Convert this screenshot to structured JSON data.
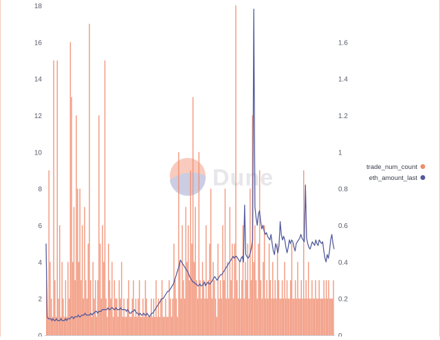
{
  "watermark": {
    "text": "Dune"
  },
  "colors": {
    "bar": "#f08c6e",
    "line": "#525a9c",
    "background": "#ffffff",
    "frame": "#f3c9bd",
    "watermark_logo_top": "#f7c2b3",
    "watermark_logo_bottom": "#c7cce6"
  },
  "chart_data": {
    "type": "bar+line",
    "title": "",
    "xlabel": "",
    "ylabel": "",
    "ylim": [
      0,
      18
    ],
    "y2lim": [
      0,
      1.8
    ],
    "yticks": [
      "0",
      "2",
      "4",
      "6",
      "8",
      "10",
      "12",
      "14",
      "16",
      "18"
    ],
    "y2ticks": [
      "0",
      "0.2",
      "0.4",
      "0.6",
      "0.8",
      "1",
      "1.2",
      "1.4",
      "1.6"
    ],
    "grid": false,
    "legend_position": "right",
    "legend": [
      {
        "label": "trade_num_count",
        "color": "#f08c6e"
      },
      {
        "label": "eth_amount_last",
        "color": "#525a9c"
      }
    ],
    "series": [
      {
        "name": "trade_num_count",
        "axis": "left",
        "kind": "bar",
        "values": [
          3,
          1,
          9,
          4,
          2,
          1,
          15,
          3,
          1,
          15,
          2,
          6,
          1,
          4,
          2,
          1,
          3,
          1,
          4,
          2,
          16,
          13,
          4,
          7,
          3,
          12,
          8,
          4,
          8,
          3,
          6,
          2,
          7,
          3,
          2,
          5,
          17,
          3,
          1,
          4,
          2,
          3,
          1,
          3,
          12,
          5,
          2,
          6,
          4,
          15,
          2,
          1,
          5,
          3,
          2,
          4,
          1,
          3,
          2,
          2,
          1,
          3,
          2,
          4,
          1,
          2,
          1,
          1,
          2,
          3,
          1,
          1,
          2,
          3,
          1,
          2,
          1,
          2,
          3,
          1,
          1,
          2,
          1,
          3,
          2,
          1,
          1,
          1,
          2,
          1,
          2,
          1,
          3,
          1,
          2,
          1,
          2,
          3,
          1,
          1,
          2,
          1,
          1,
          3,
          2,
          1,
          2,
          5,
          3,
          2,
          1,
          10,
          4,
          2,
          6,
          3,
          2,
          7,
          4,
          6,
          3,
          9,
          5,
          13,
          4,
          7,
          3,
          2,
          10,
          3,
          2,
          4,
          3,
          2,
          6,
          2,
          3,
          5,
          8,
          2,
          4,
          3,
          2,
          1,
          5,
          2,
          3,
          2,
          6,
          3,
          8,
          2,
          4,
          2,
          7,
          3,
          5,
          2,
          5,
          18,
          3,
          2,
          4,
          2,
          3,
          6,
          2,
          4,
          3,
          5,
          2,
          8,
          3,
          12,
          4,
          6,
          3,
          2,
          5,
          9,
          3,
          2,
          4,
          6,
          2,
          3,
          2,
          5,
          3,
          2,
          4,
          2,
          3,
          2,
          5,
          3,
          2,
          2,
          3,
          2,
          4,
          2,
          3,
          2,
          2,
          3,
          5,
          2,
          2,
          3,
          2,
          4,
          2,
          2,
          3,
          2,
          9,
          2,
          3,
          2,
          4,
          2,
          2,
          3,
          2,
          2,
          3,
          2,
          2,
          3,
          2,
          2,
          2,
          3,
          2,
          3,
          2,
          3,
          2,
          2,
          2,
          3
        ]
      },
      {
        "name": "eth_amount_last",
        "axis": "right",
        "kind": "line",
        "values": [
          0.5,
          0.1,
          0.09,
          0.09,
          0.09,
          0.08,
          0.09,
          0.08,
          0.08,
          0.09,
          0.08,
          0.08,
          0.08,
          0.09,
          0.08,
          0.08,
          0.08,
          0.09,
          0.08,
          0.09,
          0.09,
          0.09,
          0.1,
          0.1,
          0.09,
          0.1,
          0.1,
          0.1,
          0.11,
          0.1,
          0.1,
          0.11,
          0.11,
          0.11,
          0.12,
          0.11,
          0.11,
          0.11,
          0.11,
          0.12,
          0.11,
          0.12,
          0.12,
          0.13,
          0.13,
          0.12,
          0.13,
          0.13,
          0.13,
          0.14,
          0.14,
          0.14,
          0.14,
          0.14,
          0.15,
          0.14,
          0.14,
          0.15,
          0.15,
          0.14,
          0.14,
          0.15,
          0.14,
          0.14,
          0.14,
          0.15,
          0.14,
          0.14,
          0.14,
          0.14,
          0.13,
          0.14,
          0.13,
          0.12,
          0.12,
          0.13,
          0.13,
          0.14,
          0.13,
          0.12,
          0.12,
          0.11,
          0.12,
          0.11,
          0.11,
          0.12,
          0.11,
          0.11,
          0.12,
          0.11,
          0.1,
          0.11,
          0.12,
          0.12,
          0.13,
          0.14,
          0.15,
          0.16,
          0.17,
          0.18,
          0.19,
          0.2,
          0.2,
          0.21,
          0.22,
          0.23,
          0.24,
          0.24,
          0.25,
          0.26,
          0.27,
          0.28,
          0.3,
          0.32,
          0.34,
          0.36,
          0.38,
          0.41,
          0.4,
          0.39,
          0.38,
          0.37,
          0.36,
          0.35,
          0.34,
          0.32,
          0.31,
          0.3,
          0.29,
          0.29,
          0.28,
          0.28,
          0.27,
          0.27,
          0.28,
          0.27,
          0.27,
          0.28,
          0.29,
          0.27,
          0.28,
          0.29,
          0.28,
          0.28,
          0.29,
          0.3,
          0.31,
          0.32,
          0.31,
          0.3,
          0.31,
          0.32,
          0.33,
          0.33,
          0.34,
          0.35,
          0.36,
          0.37,
          0.38,
          0.39,
          0.4,
          0.41,
          0.42,
          0.43,
          0.42,
          0.43,
          0.43,
          0.42,
          0.41,
          0.4,
          0.42,
          0.43,
          0.4,
          0.71,
          0.44,
          0.43,
          0.42,
          0.43,
          0.45,
          0.48,
          0.52,
          1.78,
          0.7,
          0.64,
          0.6,
          0.66,
          0.68,
          0.62,
          0.58,
          0.6,
          0.57,
          0.55,
          0.56,
          0.54,
          0.53,
          0.52,
          0.55,
          0.5,
          0.46,
          0.44,
          0.5,
          0.48,
          0.45,
          0.49,
          0.62,
          0.55,
          0.52,
          0.54,
          0.52,
          0.48,
          0.45,
          0.48,
          0.52,
          0.5,
          0.52,
          0.51,
          0.48,
          0.46,
          0.5,
          0.51,
          0.52,
          0.53,
          0.55,
          0.53,
          0.52,
          0.51,
          0.82,
          0.53,
          0.5,
          0.48,
          0.47,
          0.49,
          0.51,
          0.5,
          0.49,
          0.52,
          0.5,
          0.49,
          0.52,
          0.51,
          0.5,
          0.51,
          0.46,
          0.42,
          0.4,
          0.44,
          0.42,
          0.46,
          0.52,
          0.55,
          0.5,
          0.47
        ]
      }
    ]
  }
}
